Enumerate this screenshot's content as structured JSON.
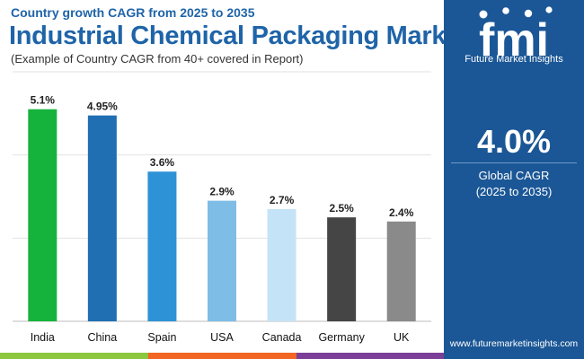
{
  "header": {
    "subtitle": "Country growth CAGR from 2025 to 2035",
    "title": "Industrial Chemical Packaging Market",
    "note": "(Example of Country CAGR from 40+ covered in Report)"
  },
  "chart_data": {
    "type": "bar",
    "title": "Industrial Chemical Packaging Market",
    "subtitle": "Country growth CAGR from 2025 to 2035",
    "categories": [
      "India",
      "China",
      "Spain",
      "USA",
      "Canada",
      "Germany",
      "UK"
    ],
    "values": [
      5.1,
      4.95,
      3.6,
      2.9,
      2.7,
      2.5,
      2.4
    ],
    "value_labels": [
      "5.1%",
      "4.95%",
      "3.6%",
      "2.9%",
      "2.7%",
      "2.5%",
      "2.4%"
    ],
    "bar_colors": [
      "#16b33c",
      "#1f6fb2",
      "#2e92d6",
      "#7dbde6",
      "#c5e3f6",
      "#454545",
      "#8a8a8a"
    ],
    "ylim": [
      0,
      6
    ],
    "yticks": [
      2,
      4,
      6
    ],
    "grid": true,
    "xlabel": "",
    "ylabel": ""
  },
  "side": {
    "logo_letters": "fmi",
    "logo_text": "Future Market Insights",
    "stat_value": "4.0%",
    "stat_label": "Global CAGR",
    "stat_period": "(2025 to 2035)",
    "website": "www.futuremarketinsights.com"
  },
  "colors": {
    "title": "#1f64a8",
    "panel": "#1b5796",
    "footer": [
      "#8dc63f",
      "#f26522",
      "#7b3f98",
      "#1b5796"
    ]
  }
}
